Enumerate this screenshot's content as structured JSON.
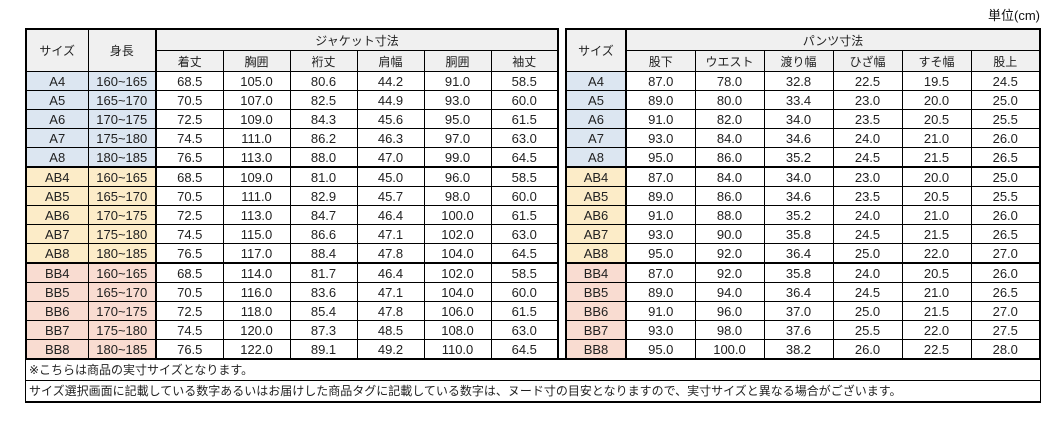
{
  "unit_label": "単位(cm)",
  "colors": {
    "group_a": "#dce6f1",
    "group_ab": "#fcecc8",
    "group_bb": "#f9dcd1",
    "header_bg": "#f0f0f0",
    "border": "#000000"
  },
  "jacket_table": {
    "size_header": "サイズ",
    "height_header": "身長",
    "group_header": "ジャケット寸法",
    "columns": [
      "着丈",
      "胸囲",
      "裄丈",
      "肩幅",
      "胴囲",
      "袖丈"
    ],
    "rows": [
      {
        "size": "A4",
        "height": "160~165",
        "group": "a",
        "values": [
          "68.5",
          "105.0",
          "80.6",
          "44.2",
          "91.0",
          "58.5"
        ]
      },
      {
        "size": "A5",
        "height": "165~170",
        "group": "a",
        "values": [
          "70.5",
          "107.0",
          "82.5",
          "44.9",
          "93.0",
          "60.0"
        ]
      },
      {
        "size": "A6",
        "height": "170~175",
        "group": "a",
        "values": [
          "72.5",
          "109.0",
          "84.3",
          "45.6",
          "95.0",
          "61.5"
        ]
      },
      {
        "size": "A7",
        "height": "175~180",
        "group": "a",
        "values": [
          "74.5",
          "111.0",
          "86.2",
          "46.3",
          "97.0",
          "63.0"
        ]
      },
      {
        "size": "A8",
        "height": "180~185",
        "group": "a",
        "values": [
          "76.5",
          "113.0",
          "88.0",
          "47.0",
          "99.0",
          "64.5"
        ]
      },
      {
        "size": "AB4",
        "height": "160~165",
        "group": "ab",
        "values": [
          "68.5",
          "109.0",
          "81.0",
          "45.0",
          "96.0",
          "58.5"
        ]
      },
      {
        "size": "AB5",
        "height": "165~170",
        "group": "ab",
        "values": [
          "70.5",
          "111.0",
          "82.9",
          "45.7",
          "98.0",
          "60.0"
        ]
      },
      {
        "size": "AB6",
        "height": "170~175",
        "group": "ab",
        "values": [
          "72.5",
          "113.0",
          "84.7",
          "46.4",
          "100.0",
          "61.5"
        ]
      },
      {
        "size": "AB7",
        "height": "175~180",
        "group": "ab",
        "values": [
          "74.5",
          "115.0",
          "86.6",
          "47.1",
          "102.0",
          "63.0"
        ]
      },
      {
        "size": "AB8",
        "height": "180~185",
        "group": "ab",
        "values": [
          "76.5",
          "117.0",
          "88.4",
          "47.8",
          "104.0",
          "64.5"
        ]
      },
      {
        "size": "BB4",
        "height": "160~165",
        "group": "bb",
        "values": [
          "68.5",
          "114.0",
          "81.7",
          "46.4",
          "102.0",
          "58.5"
        ]
      },
      {
        "size": "BB5",
        "height": "165~170",
        "group": "bb",
        "values": [
          "70.5",
          "116.0",
          "83.6",
          "47.1",
          "104.0",
          "60.0"
        ]
      },
      {
        "size": "BB6",
        "height": "170~175",
        "group": "bb",
        "values": [
          "72.5",
          "118.0",
          "85.4",
          "47.8",
          "106.0",
          "61.5"
        ]
      },
      {
        "size": "BB7",
        "height": "175~180",
        "group": "bb",
        "values": [
          "74.5",
          "120.0",
          "87.3",
          "48.5",
          "108.0",
          "63.0"
        ]
      },
      {
        "size": "BB8",
        "height": "180~185",
        "group": "bb",
        "values": [
          "76.5",
          "122.0",
          "89.1",
          "49.2",
          "110.0",
          "64.5"
        ]
      }
    ]
  },
  "pants_table": {
    "size_header": "サイズ",
    "group_header": "パンツ寸法",
    "columns": [
      "股下",
      "ウエスト",
      "渡り幅",
      "ひざ幅",
      "すそ幅",
      "股上"
    ],
    "rows": [
      {
        "size": "A4",
        "group": "a",
        "values": [
          "87.0",
          "78.0",
          "32.8",
          "22.5",
          "19.5",
          "24.5"
        ]
      },
      {
        "size": "A5",
        "group": "a",
        "values": [
          "89.0",
          "80.0",
          "33.4",
          "23.0",
          "20.0",
          "25.0"
        ]
      },
      {
        "size": "A6",
        "group": "a",
        "values": [
          "91.0",
          "82.0",
          "34.0",
          "23.5",
          "20.5",
          "25.5"
        ]
      },
      {
        "size": "A7",
        "group": "a",
        "values": [
          "93.0",
          "84.0",
          "34.6",
          "24.0",
          "21.0",
          "26.0"
        ]
      },
      {
        "size": "A8",
        "group": "a",
        "values": [
          "95.0",
          "86.0",
          "35.2",
          "24.5",
          "21.5",
          "26.5"
        ]
      },
      {
        "size": "AB4",
        "group": "ab",
        "values": [
          "87.0",
          "84.0",
          "34.0",
          "23.0",
          "20.0",
          "25.0"
        ]
      },
      {
        "size": "AB5",
        "group": "ab",
        "values": [
          "89.0",
          "86.0",
          "34.6",
          "23.5",
          "20.5",
          "25.5"
        ]
      },
      {
        "size": "AB6",
        "group": "ab",
        "values": [
          "91.0",
          "88.0",
          "35.2",
          "24.0",
          "21.0",
          "26.0"
        ]
      },
      {
        "size": "AB7",
        "group": "ab",
        "values": [
          "93.0",
          "90.0",
          "35.8",
          "24.5",
          "21.5",
          "26.5"
        ]
      },
      {
        "size": "AB8",
        "group": "ab",
        "values": [
          "95.0",
          "92.0",
          "36.4",
          "25.0",
          "22.0",
          "27.0"
        ]
      },
      {
        "size": "BB4",
        "group": "bb",
        "values": [
          "87.0",
          "92.0",
          "35.8",
          "24.0",
          "20.5",
          "26.0"
        ]
      },
      {
        "size": "BB5",
        "group": "bb",
        "values": [
          "89.0",
          "94.0",
          "36.4",
          "24.5",
          "21.0",
          "26.5"
        ]
      },
      {
        "size": "BB6",
        "group": "bb",
        "values": [
          "91.0",
          "96.0",
          "37.0",
          "25.0",
          "21.5",
          "27.0"
        ]
      },
      {
        "size": "BB7",
        "group": "bb",
        "values": [
          "93.0",
          "98.0",
          "37.6",
          "25.5",
          "22.0",
          "27.5"
        ]
      },
      {
        "size": "BB8",
        "group": "bb",
        "values": [
          "95.0",
          "100.0",
          "38.2",
          "26.0",
          "22.5",
          "28.0"
        ]
      }
    ]
  },
  "footnotes": [
    "※こちらは商品の実寸サイズとなります。",
    "サイズ選択画面に記載している数字あるいはお届けした商品タグに記載している数字は、ヌード寸の目安となりますので、実寸サイズと異なる場合がございます。"
  ]
}
